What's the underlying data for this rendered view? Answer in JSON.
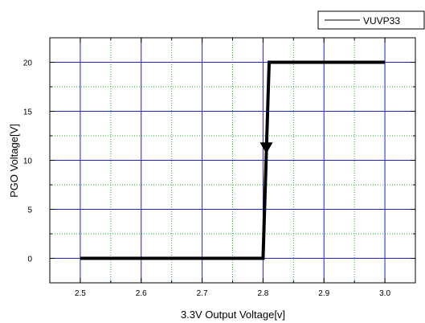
{
  "chart_data": {
    "type": "line",
    "title": "",
    "xlabel": "3.3V Output Voltage[v]",
    "ylabel": "PGO Voltage[V]",
    "xlim": [
      2.45,
      3.05
    ],
    "ylim": [
      -2.5,
      22.5
    ],
    "x_ticks": [
      "2.5",
      "2.6",
      "2.7",
      "2.8",
      "2.9",
      "3.0"
    ],
    "y_ticks": [
      "0",
      "5",
      "10",
      "15",
      "20"
    ],
    "grid": true,
    "legend_position": "top-right",
    "series": [
      {
        "name": "VUVP33",
        "color": "#000000",
        "x": [
          2.5,
          2.8,
          2.805,
          2.81,
          3.0
        ],
        "y": [
          0,
          0,
          10,
          20,
          20
        ]
      }
    ],
    "annotation": "down-arrow marker on transition near 2.805 V",
    "colors": {
      "major_grid": "#1f24c8",
      "minor_grid": "#22b322",
      "line": "#000000"
    }
  }
}
